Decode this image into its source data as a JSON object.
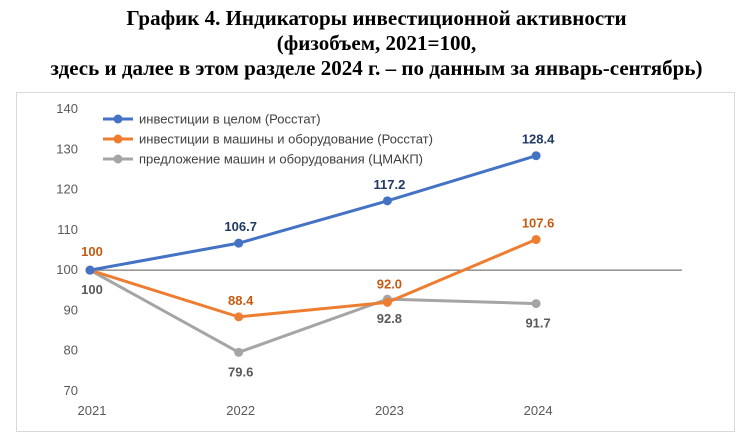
{
  "title_lines": [
    "График 4. Индикаторы инвестиционной активности",
    "(физобъем, 2021=100,",
    "здесь и далее в этом разделе 2024 г. – по данным за январь-сентябрь)"
  ],
  "chart_data": {
    "type": "line",
    "x": [
      "2021",
      "2022",
      "2023",
      "2024"
    ],
    "ylim": [
      70,
      140
    ],
    "yticks": [
      "70",
      "80",
      "90",
      "100",
      "110",
      "120",
      "130",
      "140"
    ],
    "grid": "horizontal-at-100-only",
    "legend_position": "top-left",
    "series": [
      {
        "name": "инвестиции в целом (Росстат)",
        "color": "#4472c4",
        "values": [
          100,
          106.7,
          117.2,
          128.4
        ],
        "labels": [
          "",
          "106.7",
          "117.2",
          "128.4"
        ],
        "label_pos": "above",
        "label_color": "#1f3864"
      },
      {
        "name": "инвестиции в машины и оборудование (Росстат)",
        "color": "#ed7d31",
        "values": [
          100,
          88.4,
          92.0,
          107.6
        ],
        "labels": [
          "100",
          "88.4",
          "92.0",
          "107.6"
        ],
        "label_pos": "above",
        "label_color": "#c55a11"
      },
      {
        "name": "предложение машин и оборудования (ЦМАКП)",
        "color": "#a5a5a5",
        "values": [
          100,
          79.6,
          92.8,
          91.7
        ],
        "labels": [
          "100",
          "79.6",
          "92.8",
          "91.7"
        ],
        "label_pos": "below",
        "label_color": "#595959"
      }
    ]
  }
}
